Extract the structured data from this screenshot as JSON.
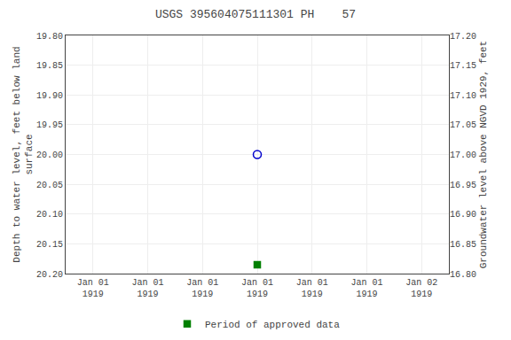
{
  "chart_data": {
    "type": "scatter",
    "title": "USGS 395604075111301 PH    57",
    "ylabel": "Depth to water level, feet below land\nsurface",
    "y2label": "Groundwater level above NGVD 1929, feet",
    "categories": [
      "Jan 01\n1919",
      "Jan 01\n1919",
      "Jan 01\n1919",
      "Jan 01\n1919",
      "Jan 01\n1919",
      "Jan 01\n1919",
      "Jan 02\n1919"
    ],
    "series": [
      {
        "color": "#0000cc",
        "marker": "circle-open",
        "values": [
          null,
          null,
          null,
          20.0,
          null,
          null,
          null
        ]
      },
      {
        "name": "Period of approved data",
        "color": "#008000",
        "marker": "square",
        "values": [
          null,
          null,
          null,
          20.185,
          null,
          null,
          null
        ]
      }
    ],
    "ylim": [
      20.2,
      19.8
    ],
    "yticks": [
      {
        "value": 19.8,
        "label": "19.80"
      },
      {
        "value": 19.85,
        "label": "19.85"
      },
      {
        "value": 19.9,
        "label": "19.90"
      },
      {
        "value": 19.95,
        "label": "19.95"
      },
      {
        "value": 20.0,
        "label": "20.00"
      },
      {
        "value": 20.05,
        "label": "20.05"
      },
      {
        "value": 20.1,
        "label": "20.10"
      },
      {
        "value": 20.15,
        "label": "20.15"
      },
      {
        "value": 20.2,
        "label": "20.20"
      }
    ],
    "y2lim": [
      16.8,
      17.2
    ],
    "y2ticks": [
      {
        "value": 17.2,
        "label": "17.20"
      },
      {
        "value": 17.15,
        "label": "17.15"
      },
      {
        "value": 17.1,
        "label": "17.10"
      },
      {
        "value": 17.05,
        "label": "17.05"
      },
      {
        "value": 17.0,
        "label": "17.00"
      },
      {
        "value": 16.95,
        "label": "16.95"
      },
      {
        "value": 16.9,
        "label": "16.90"
      },
      {
        "value": 16.85,
        "label": "16.85"
      },
      {
        "value": 16.8,
        "label": "16.80"
      }
    ],
    "grid": true,
    "legend": "bottom"
  }
}
